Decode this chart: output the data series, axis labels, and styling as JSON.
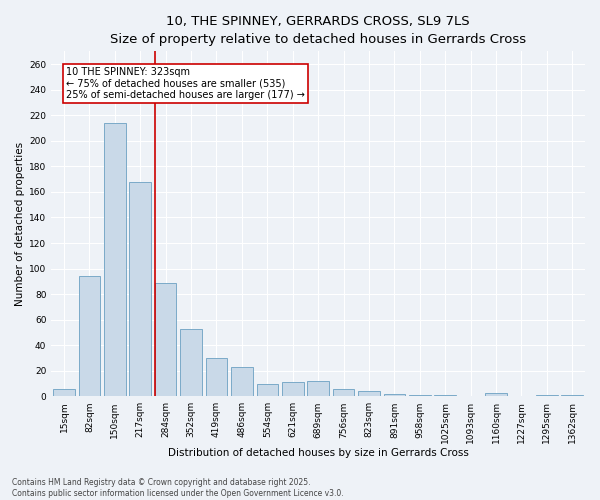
{
  "title1": "10, THE SPINNEY, GERRARDS CROSS, SL9 7LS",
  "title2": "Size of property relative to detached houses in Gerrards Cross",
  "xlabel": "Distribution of detached houses by size in Gerrards Cross",
  "ylabel": "Number of detached properties",
  "categories": [
    "15sqm",
    "82sqm",
    "150sqm",
    "217sqm",
    "284sqm",
    "352sqm",
    "419sqm",
    "486sqm",
    "554sqm",
    "621sqm",
    "689sqm",
    "756sqm",
    "823sqm",
    "891sqm",
    "958sqm",
    "1025sqm",
    "1093sqm",
    "1160sqm",
    "1227sqm",
    "1295sqm",
    "1362sqm"
  ],
  "values": [
    6,
    94,
    214,
    168,
    89,
    53,
    30,
    23,
    10,
    11,
    12,
    6,
    4,
    2,
    1,
    1,
    0,
    3,
    0,
    1,
    1
  ],
  "bar_color": "#c9d9e8",
  "bar_edge_color": "#7aaac8",
  "vline_color": "#cc0000",
  "vline_x_index": 3.6,
  "annotation_text": "10 THE SPINNEY: 323sqm\n← 75% of detached houses are smaller (535)\n25% of semi-detached houses are larger (177) →",
  "annotation_box_color": "#ffffff",
  "annotation_box_edge": "#cc0000",
  "ylim": [
    0,
    270
  ],
  "yticks": [
    0,
    20,
    40,
    60,
    80,
    100,
    120,
    140,
    160,
    180,
    200,
    220,
    240,
    260
  ],
  "background_color": "#eef2f7",
  "footer_line1": "Contains HM Land Registry data © Crown copyright and database right 2025.",
  "footer_line2": "Contains public sector information licensed under the Open Government Licence v3.0.",
  "title1_fontsize": 9.5,
  "title2_fontsize": 8,
  "xlabel_fontsize": 7.5,
  "ylabel_fontsize": 7.5,
  "tick_fontsize": 6.5,
  "annotation_fontsize": 7,
  "footer_fontsize": 5.5
}
